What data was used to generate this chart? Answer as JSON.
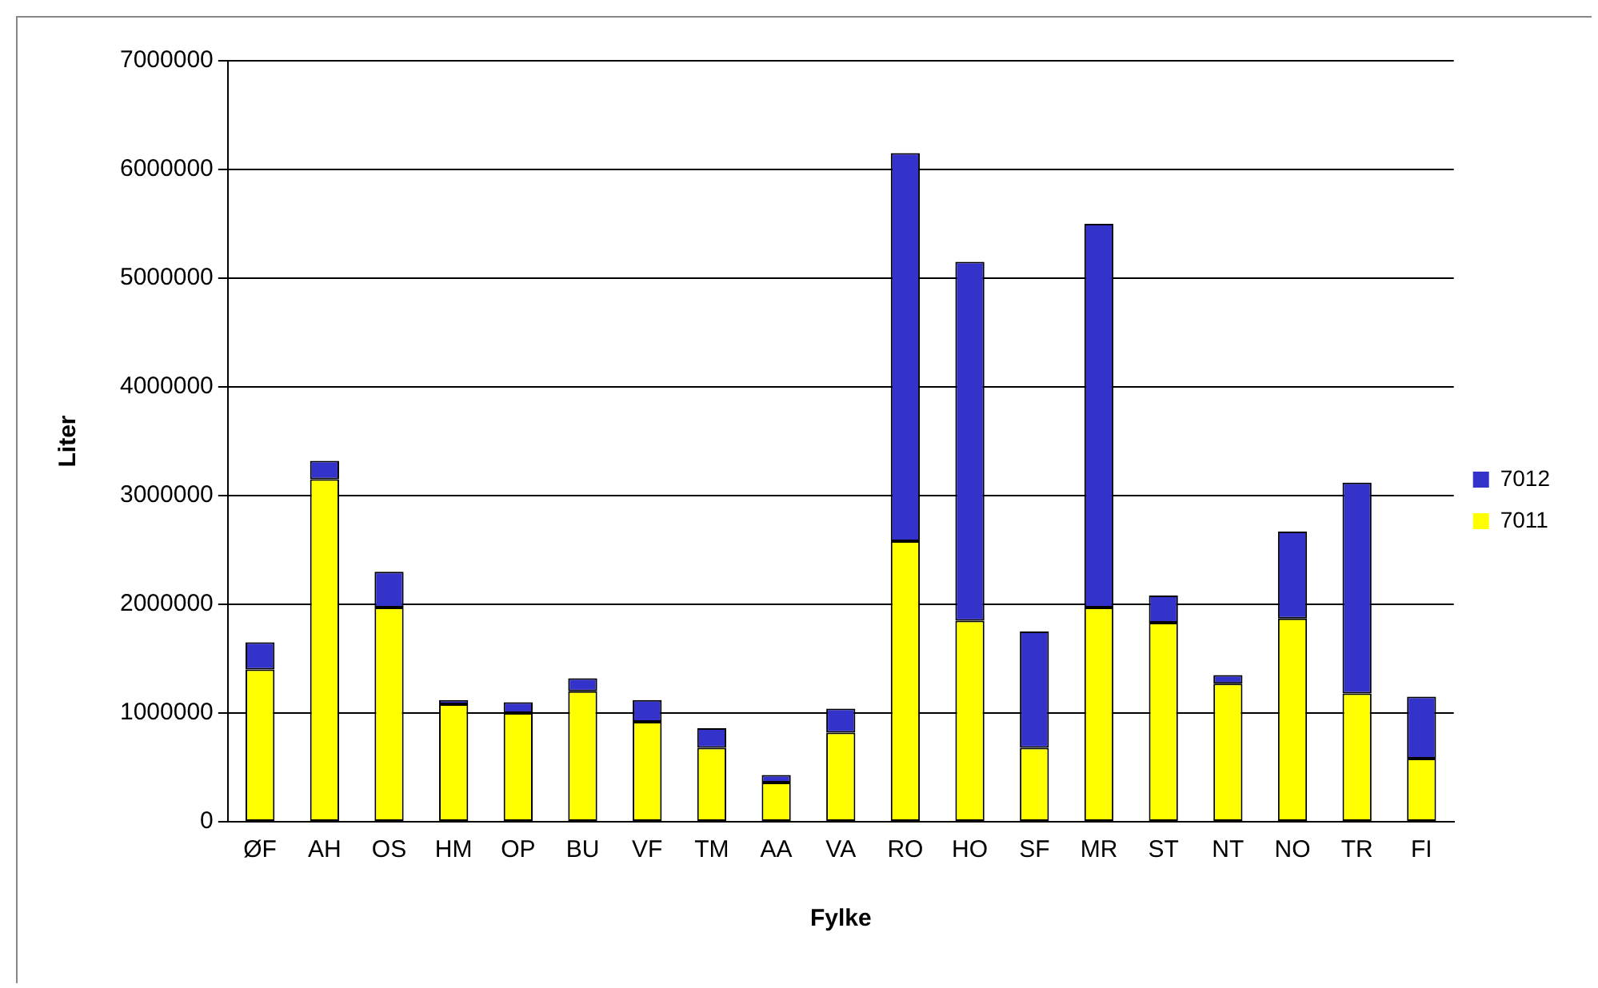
{
  "chart_data": {
    "type": "bar",
    "stacked": true,
    "xlabel": "Fylke",
    "ylabel": "Liter",
    "categories": [
      "ØF",
      "AH",
      "OS",
      "HM",
      "OP",
      "BU",
      "VF",
      "TM",
      "AA",
      "VA",
      "RO",
      "HO",
      "SF",
      "MR",
      "ST",
      "NT",
      "NO",
      "TR",
      "FI"
    ],
    "series": [
      {
        "name": "7011",
        "color": "#ffff00",
        "values": [
          1400000,
          3150000,
          1970000,
          1080000,
          1000000,
          1200000,
          920000,
          680000,
          360000,
          820000,
          2580000,
          1850000,
          680000,
          1970000,
          1830000,
          1270000,
          1870000,
          1180000,
          580000
        ]
      },
      {
        "name": "7012",
        "color": "#3333cc",
        "values": [
          250000,
          170000,
          330000,
          40000,
          100000,
          120000,
          200000,
          180000,
          70000,
          220000,
          3570000,
          3300000,
          1070000,
          3530000,
          250000,
          80000,
          800000,
          1940000,
          570000
        ]
      }
    ],
    "ylim": [
      0,
      7000000
    ],
    "yticks": [
      0,
      1000000,
      2000000,
      3000000,
      4000000,
      5000000,
      6000000,
      7000000
    ],
    "grid": "y",
    "legend": "right"
  }
}
